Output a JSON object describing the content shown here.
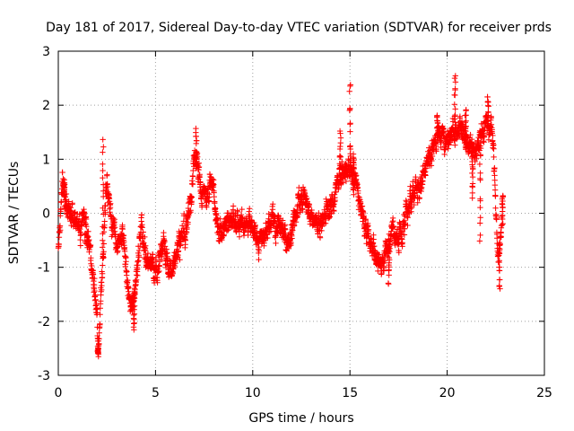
{
  "colors": {
    "series": "#ff0000",
    "axis": "#000000",
    "grid": "#a0a0a0",
    "background": "#ffffff"
  },
  "chart_data": {
    "type": "scatter",
    "title": "Day 181 of 2017, Sidereal Day-to-day VTEC variation (SDTVAR) for receiver prds",
    "xlabel": "GPS time / hours",
    "ylabel": "SDTVAR / TECUs",
    "xlim": [
      0,
      25
    ],
    "ylim": [
      -3,
      3
    ],
    "xticks": [
      0,
      5,
      10,
      15,
      20,
      25
    ],
    "yticks": [
      -3,
      -2,
      -1,
      0,
      1,
      2,
      3
    ],
    "grid": true,
    "marker": "plus",
    "series": [
      {
        "name": "SDTVAR",
        "points_per_hour": 120,
        "x_start": 0.0,
        "trend": [
          [
            0.0,
            -0.6
          ],
          [
            0.2,
            0.5
          ],
          [
            0.45,
            0.1
          ],
          [
            0.8,
            -0.1
          ],
          [
            1.1,
            -0.3
          ],
          [
            1.3,
            0.0
          ],
          [
            1.5,
            -0.4
          ],
          [
            1.7,
            -1.0
          ],
          [
            1.9,
            -1.5
          ],
          [
            2.05,
            -2.5
          ],
          [
            2.25,
            -1.0
          ],
          [
            2.45,
            0.5
          ],
          [
            2.7,
            0.0
          ],
          [
            3.0,
            -0.5
          ],
          [
            3.3,
            -0.3
          ],
          [
            3.55,
            -1.5
          ],
          [
            3.8,
            -1.8
          ],
          [
            4.0,
            -1.2
          ],
          [
            4.25,
            -0.2
          ],
          [
            4.5,
            -0.9
          ],
          [
            4.8,
            -0.9
          ],
          [
            5.0,
            -1.2
          ],
          [
            5.4,
            -0.6
          ],
          [
            5.8,
            -1.1
          ],
          [
            6.2,
            -0.5
          ],
          [
            6.5,
            -0.3
          ],
          [
            6.8,
            0.2
          ],
          [
            7.0,
            1.2
          ],
          [
            7.3,
            0.4
          ],
          [
            7.6,
            0.3
          ],
          [
            7.9,
            0.5
          ],
          [
            8.2,
            -0.3
          ],
          [
            8.6,
            -0.3
          ],
          [
            9.0,
            0.0
          ],
          [
            9.3,
            -0.2
          ],
          [
            9.6,
            -0.2
          ],
          [
            10.0,
            -0.3
          ],
          [
            10.3,
            -0.5
          ],
          [
            10.6,
            -0.4
          ],
          [
            11.0,
            -0.1
          ],
          [
            11.4,
            -0.2
          ],
          [
            11.8,
            -0.5
          ],
          [
            12.2,
            0.0
          ],
          [
            12.6,
            0.3
          ],
          [
            13.0,
            -0.1
          ],
          [
            13.4,
            -0.2
          ],
          [
            13.8,
            0.0
          ],
          [
            14.1,
            0.2
          ],
          [
            14.4,
            0.6
          ],
          [
            14.75,
            0.8
          ],
          [
            15.1,
            0.8
          ],
          [
            15.4,
            0.4
          ],
          [
            15.7,
            -0.2
          ],
          [
            16.0,
            -0.5
          ],
          [
            16.3,
            -0.8
          ],
          [
            16.6,
            -0.9
          ],
          [
            16.9,
            -0.7
          ],
          [
            17.2,
            -0.3
          ],
          [
            17.5,
            -0.4
          ],
          [
            17.8,
            -0.2
          ],
          [
            18.1,
            0.3
          ],
          [
            18.4,
            0.5
          ],
          [
            18.7,
            0.6
          ],
          [
            19.0,
            1.0
          ],
          [
            19.3,
            1.3
          ],
          [
            19.6,
            1.5
          ],
          [
            19.9,
            1.3
          ],
          [
            20.2,
            1.4
          ],
          [
            20.5,
            1.6
          ],
          [
            20.8,
            1.5
          ],
          [
            21.1,
            1.2
          ],
          [
            21.4,
            1.1
          ],
          [
            21.7,
            1.4
          ],
          [
            22.0,
            1.7
          ],
          [
            22.3,
            1.6
          ],
          [
            22.6,
            -0.9
          ],
          [
            22.8,
            -0.2
          ]
        ],
        "spikes": [
          [
            0.3,
            0.6
          ],
          [
            2.05,
            -2.6
          ],
          [
            2.3,
            1.35
          ],
          [
            3.9,
            -2.15
          ],
          [
            7.1,
            1.5
          ],
          [
            14.5,
            1.5
          ],
          [
            15.0,
            2.4
          ],
          [
            15.2,
            1.1
          ],
          [
            17.0,
            -1.3
          ],
          [
            19.5,
            1.8
          ],
          [
            20.4,
            2.55
          ],
          [
            20.95,
            1.9
          ],
          [
            21.3,
            0.35
          ],
          [
            21.7,
            -0.45
          ],
          [
            22.1,
            2.2
          ],
          [
            22.7,
            -1.4
          ],
          [
            22.85,
            0.4
          ]
        ]
      }
    ]
  }
}
